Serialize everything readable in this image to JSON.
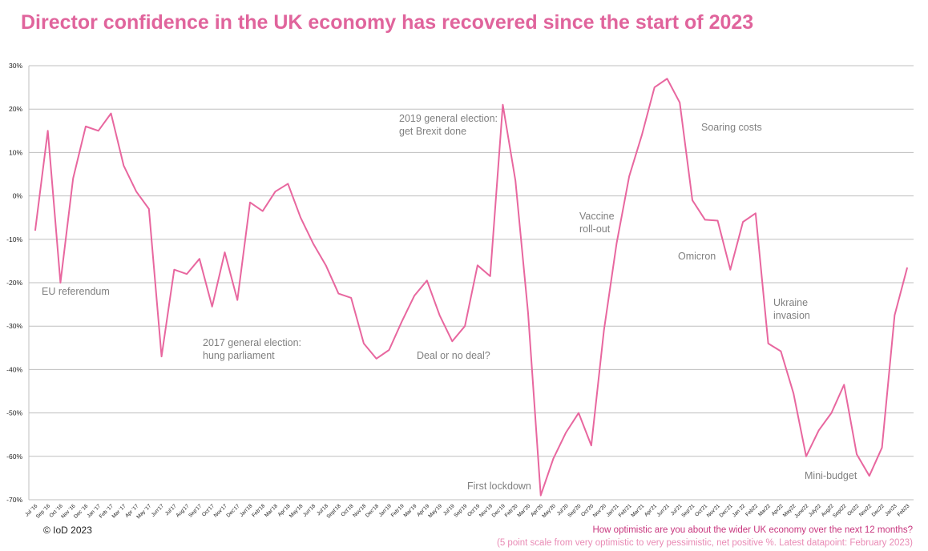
{
  "chart_data": {
    "type": "line",
    "title": "Director confidence in the UK economy has recovered since the start of 2023",
    "categories": [
      "Jul '16",
      "Sep '16",
      "Oct '16",
      "Nov '16",
      "Dec '16",
      "Jan '17",
      "Feb '17",
      "Mar '17",
      "Apr '17",
      "May '17",
      "Jun'17",
      "Jul'17",
      "Aug'17",
      "Sep'17",
      "Oct'17",
      "Nov'17",
      "Dec'17",
      "Jan'18",
      "Feb'18",
      "Mar'18",
      "Apr'18",
      "May'18",
      "Jun'18",
      "Jul'18",
      "Sept'18",
      "Oct'18",
      "Nov'18",
      "Dec'18",
      "Jan'19",
      "Feb'19",
      "Mar'19",
      "Apr'19",
      "May'19",
      "Jul'19",
      "Sep'19",
      "Oct'19",
      "Nov'19",
      "Dec'19",
      "Feb'20",
      "Mar'20",
      "Apr'20",
      "May'20",
      "Jul'20",
      "Sep'20",
      "Oct'20",
      "Nov'20",
      "Jan'21",
      "Feb'21",
      "Mar'21",
      "Apr'21",
      "Jun'21",
      "Jul'21",
      "Sep'21",
      "Oct'21",
      "Nov'21",
      "Dec'21",
      "Jan 22",
      "Feb22",
      "Mar22",
      "Apr22",
      "May22",
      "June22",
      "July22",
      "Aug22",
      "Sept22",
      "Oct22",
      "Nov22",
      "Dec22",
      "Jan23",
      "Feb23"
    ],
    "series": [
      {
        "color": "#e8679f",
        "values": [
          -8,
          15,
          -20,
          4,
          16,
          15,
          19,
          7,
          1,
          -3,
          -37,
          -17,
          -18,
          -14.5,
          -25.5,
          -13,
          -24,
          -1.5,
          -3.5,
          1,
          2.8,
          -5,
          -11,
          -16,
          -22.5,
          -23.5,
          -34,
          -37.5,
          -35.5,
          -29,
          -23,
          -19.5,
          -27.5,
          -33.5,
          -30,
          -16,
          -18.5,
          21,
          3.5,
          -27,
          -69,
          -60.5,
          -54.5,
          -50,
          -57.5,
          -31,
          -11,
          4.5,
          14,
          25,
          27,
          21.5,
          -1,
          -5.5,
          -5.7,
          -17,
          -6,
          -4,
          -34,
          -35.8,
          -45.5,
          -60,
          -54,
          -50,
          -43.5,
          -59.5,
          -64.5,
          -58,
          -27.5,
          -16.5
        ]
      }
    ],
    "ylim": [
      -70,
      30
    ],
    "yticks": [
      {
        "value": -70,
        "label": "-70%"
      },
      {
        "value": -60,
        "label": "-60%"
      },
      {
        "value": -50,
        "label": "-50%"
      },
      {
        "value": -40,
        "label": "-40%"
      },
      {
        "value": -30,
        "label": "-30%"
      },
      {
        "value": -20,
        "label": "-20%"
      },
      {
        "value": -10,
        "label": "-10%"
      },
      {
        "value": 0,
        "label": "0%"
      },
      {
        "value": 10,
        "label": "10%"
      },
      {
        "value": 20,
        "label": "20%"
      },
      {
        "value": 30,
        "label": "30%"
      }
    ],
    "grid": true,
    "annotations": [
      [
        "EU referendum"
      ],
      [
        "2017 general election:",
        "hung parliament"
      ],
      [
        "2019 general election:",
        "get Brexit done"
      ],
      [
        "Deal or no deal?"
      ],
      [
        "First lockdown"
      ],
      [
        "Vaccine",
        "roll-out"
      ],
      [
        "Soaring costs"
      ],
      [
        "Omicron"
      ],
      [
        "Ukraine",
        "invasion"
      ],
      [
        "Mini-budget"
      ]
    ],
    "source": "© IoD 2023",
    "question": "How optimistic are you about the wider UK economy over the next 12 months?",
    "note": "(5 point scale from very optimistic to very pessimistic, net positive %. Latest datapoint: February 2023)"
  }
}
